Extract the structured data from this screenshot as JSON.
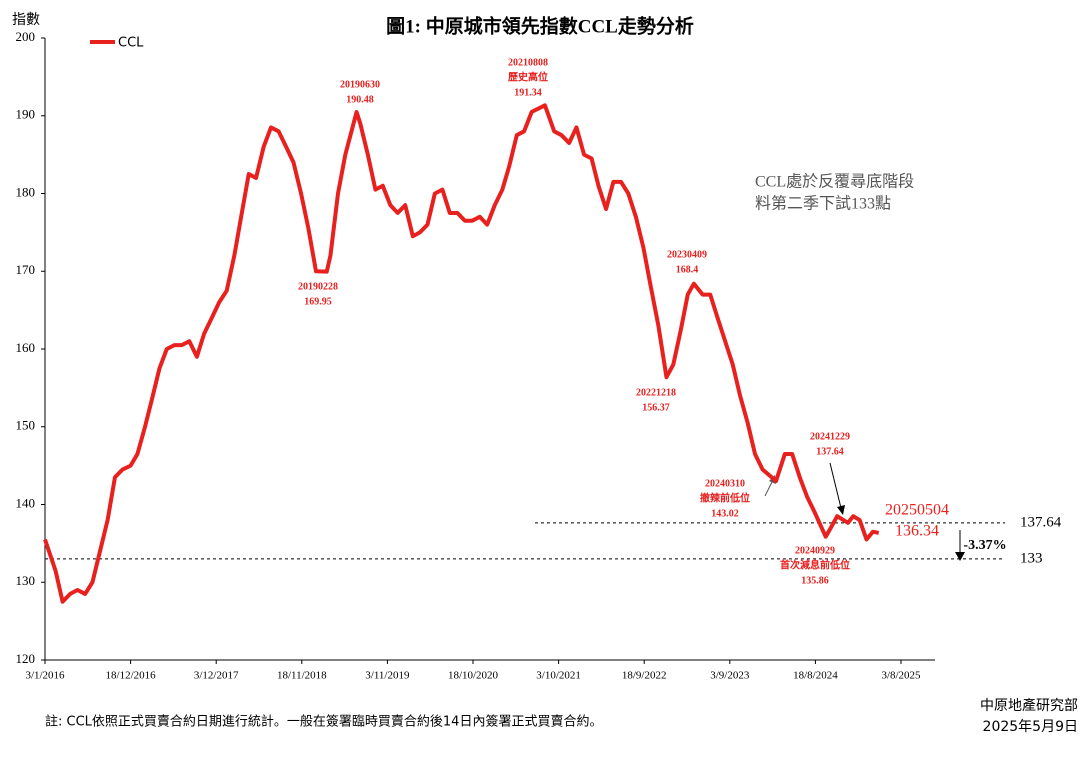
{
  "chart_data": {
    "type": "line",
    "title": "圖1: 中原城市領先指數CCL走勢分析",
    "y_label": "指數",
    "legend": "top-left",
    "series": [
      {
        "name": "CCL",
        "color": "#e8201e",
        "x": [
          "3/1/2016",
          "15/2/2016",
          "15/3/2016",
          "15/4/2016",
          "15/5/2016",
          "15/6/2016",
          "15/7/2016",
          "15/8/2016",
          "15/9/2016",
          "15/10/2016",
          "15/11/2016",
          "18/12/2016",
          "15/1/2017",
          "15/2/2017",
          "15/3/2017",
          "15/4/2017",
          "15/5/2017",
          "15/6/2017",
          "15/7/2017",
          "15/8/2017",
          "15/9/2017",
          "15/10/2017",
          "15/11/2017",
          "15/12/2017",
          "15/1/2018",
          "15/2/2018",
          "15/3/2018",
          "15/4/2018",
          "15/5/2018",
          "15/6/2018",
          "15/7/2018",
          "15/8/2018",
          "15/9/2018",
          "15/10/2018",
          "15/11/2018",
          "15/12/2018",
          "15/1/2019",
          "28/2/2019",
          "15/3/2019",
          "15/4/2019",
          "15/5/2019",
          "30/6/2019",
          "15/7/2019",
          "15/8/2019",
          "15/9/2019",
          "15/10/2019",
          "15/11/2019",
          "15/12/2019",
          "15/1/2020",
          "15/2/2020",
          "15/3/2020",
          "15/4/2020",
          "15/5/2020",
          "15/6/2020",
          "15/7/2020",
          "15/8/2020",
          "15/9/2020",
          "15/10/2020",
          "15/11/2020",
          "15/12/2020",
          "15/1/2021",
          "15/2/2021",
          "15/3/2021",
          "15/4/2021",
          "15/5/2021",
          "15/6/2021",
          "8/8/2021",
          "15/9/2021",
          "15/10/2021",
          "15/11/2021",
          "15/12/2021",
          "15/1/2022",
          "15/2/2022",
          "15/3/2022",
          "15/4/2022",
          "15/5/2022",
          "15/6/2022",
          "15/7/2022",
          "15/8/2022",
          "15/9/2022",
          "15/10/2022",
          "15/11/2022",
          "18/12/2022",
          "15/1/2023",
          "15/2/2023",
          "15/3/2023",
          "9/4/2023",
          "15/5/2023",
          "15/6/2023",
          "15/7/2023",
          "15/8/2023",
          "15/9/2023",
          "15/10/2023",
          "15/11/2023",
          "15/12/2023",
          "15/1/2024",
          "10/3/2024",
          "15/4/2024",
          "15/5/2024",
          "15/6/2024",
          "15/7/2024",
          "15/8/2024",
          "29/9/2024",
          "20/10/2024",
          "15/11/2024",
          "29/12/2024",
          "20/1/2025",
          "15/2/2025",
          "15/3/2025",
          "10/4/2025",
          "4/5/2025"
        ],
        "values": [
          135.5,
          131.5,
          127.5,
          128.5,
          129,
          128.5,
          130,
          134,
          138,
          143.5,
          144.5,
          145,
          146.5,
          150,
          153.5,
          157.5,
          160,
          160.5,
          160.5,
          161,
          159,
          162,
          164,
          166,
          167.5,
          172,
          177,
          182.5,
          182,
          186,
          188.5,
          188,
          186,
          184,
          180,
          175.5,
          170,
          169.95,
          172,
          180,
          185,
          190.48,
          189,
          185,
          180.5,
          181,
          178.5,
          177.5,
          178.5,
          174.5,
          175,
          176,
          180,
          180.5,
          177.5,
          177.5,
          176.5,
          176.5,
          177,
          176,
          178.5,
          180.5,
          183.5,
          187.5,
          188,
          190.5,
          191.34,
          188,
          187.5,
          186.5,
          188.5,
          185,
          184.5,
          181,
          178,
          181.5,
          181.5,
          180,
          177,
          173,
          168,
          163,
          156.37,
          158,
          162.5,
          167,
          168.4,
          167,
          167,
          164,
          161,
          158,
          154,
          150.5,
          146.5,
          144.5,
          143.02,
          146.5,
          146.5,
          143.5,
          141,
          139,
          135.86,
          137,
          138.5,
          137.64,
          138.5,
          138,
          135.5,
          136.5,
          136.34
        ]
      }
    ],
    "xlim": [
      "3/1/2016",
      "20/12/2025"
    ],
    "xticks": [
      "3/1/2016",
      "18/12/2016",
      "3/12/2017",
      "18/11/2018",
      "3/11/2019",
      "18/10/2020",
      "3/10/2021",
      "18/9/2022",
      "3/9/2023",
      "18/8/2024",
      "3/8/2025"
    ],
    "ylim": [
      120,
      200
    ],
    "yticks": [
      120,
      130,
      140,
      150,
      160,
      170,
      180,
      190,
      200
    ],
    "annotations": [
      {
        "date": "20190630",
        "value": 190.48
      },
      {
        "date": "20210808",
        "note": "歷史高位",
        "value": 191.34
      },
      {
        "date": "20190228",
        "value": 169.95
      },
      {
        "date": "20230409",
        "value": 168.4
      },
      {
        "date": "20221218",
        "value": 156.37
      },
      {
        "date": "20240310",
        "note": "撤辣前低位",
        "value": 143.02
      },
      {
        "date": "20241229",
        "value": 137.64
      },
      {
        "date": "20240929",
        "note": "首次減息前低位",
        "value": 135.86
      },
      {
        "date": "20250504",
        "value": 136.34
      }
    ],
    "reference_lines": [
      {
        "value": 137.64
      },
      {
        "value": 133
      }
    ],
    "change": "-3.37%",
    "comment": [
      "CCL處於反覆尋底階段",
      "料第二季下試133點"
    ],
    "footnote": "註: CCL依照正式買賣合約日期進行統計。一般在簽署臨時買賣合約後14日內簽署正式買賣合約。",
    "source": "中原地產研究部",
    "date": "2025年5月9日"
  }
}
